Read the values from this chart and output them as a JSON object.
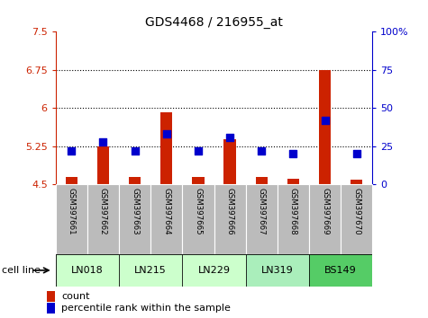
{
  "title": "GDS4468 / 216955_at",
  "samples": [
    "GSM397661",
    "GSM397662",
    "GSM397663",
    "GSM397664",
    "GSM397665",
    "GSM397666",
    "GSM397667",
    "GSM397668",
    "GSM397669",
    "GSM397670"
  ],
  "count_values": [
    4.65,
    5.24,
    4.65,
    5.92,
    4.65,
    5.38,
    4.65,
    4.62,
    6.75,
    4.6
  ],
  "count_base": 4.5,
  "percentile_values": [
    22,
    28,
    22,
    33,
    22,
    31,
    22,
    20,
    42,
    20
  ],
  "ylim_left": [
    4.5,
    7.5
  ],
  "ylim_right": [
    0,
    100
  ],
  "yticks_left": [
    4.5,
    5.25,
    6.0,
    6.75,
    7.5
  ],
  "yticks_right": [
    0,
    25,
    50,
    75,
    100
  ],
  "ytick_labels_left": [
    "4.5",
    "5.25",
    "6",
    "6.75",
    "7.5"
  ],
  "ytick_labels_right": [
    "0",
    "25",
    "50",
    "75",
    "100%"
  ],
  "hlines": [
    5.25,
    6.0,
    6.75
  ],
  "cell_lines": [
    {
      "name": "LN018",
      "samples": [
        0,
        1
      ],
      "color": "#ccffcc"
    },
    {
      "name": "LN215",
      "samples": [
        2,
        3
      ],
      "color": "#ccffcc"
    },
    {
      "name": "LN229",
      "samples": [
        4,
        5
      ],
      "color": "#ccffcc"
    },
    {
      "name": "LN319",
      "samples": [
        6,
        7
      ],
      "color": "#aaeebb"
    },
    {
      "name": "BS149",
      "samples": [
        8,
        9
      ],
      "color": "#55cc66"
    }
  ],
  "bar_color": "#cc2200",
  "dot_color": "#0000cc",
  "bar_width": 0.38,
  "dot_size": 26,
  "label_count": "count",
  "label_percentile": "percentile rank within the sample",
  "cell_line_label": "cell line",
  "left_axis_color": "#cc2200",
  "right_axis_color": "#0000cc",
  "sample_bg_color": "#bbbbbb",
  "fig_width": 4.75,
  "fig_height": 3.54,
  "dpi": 100
}
